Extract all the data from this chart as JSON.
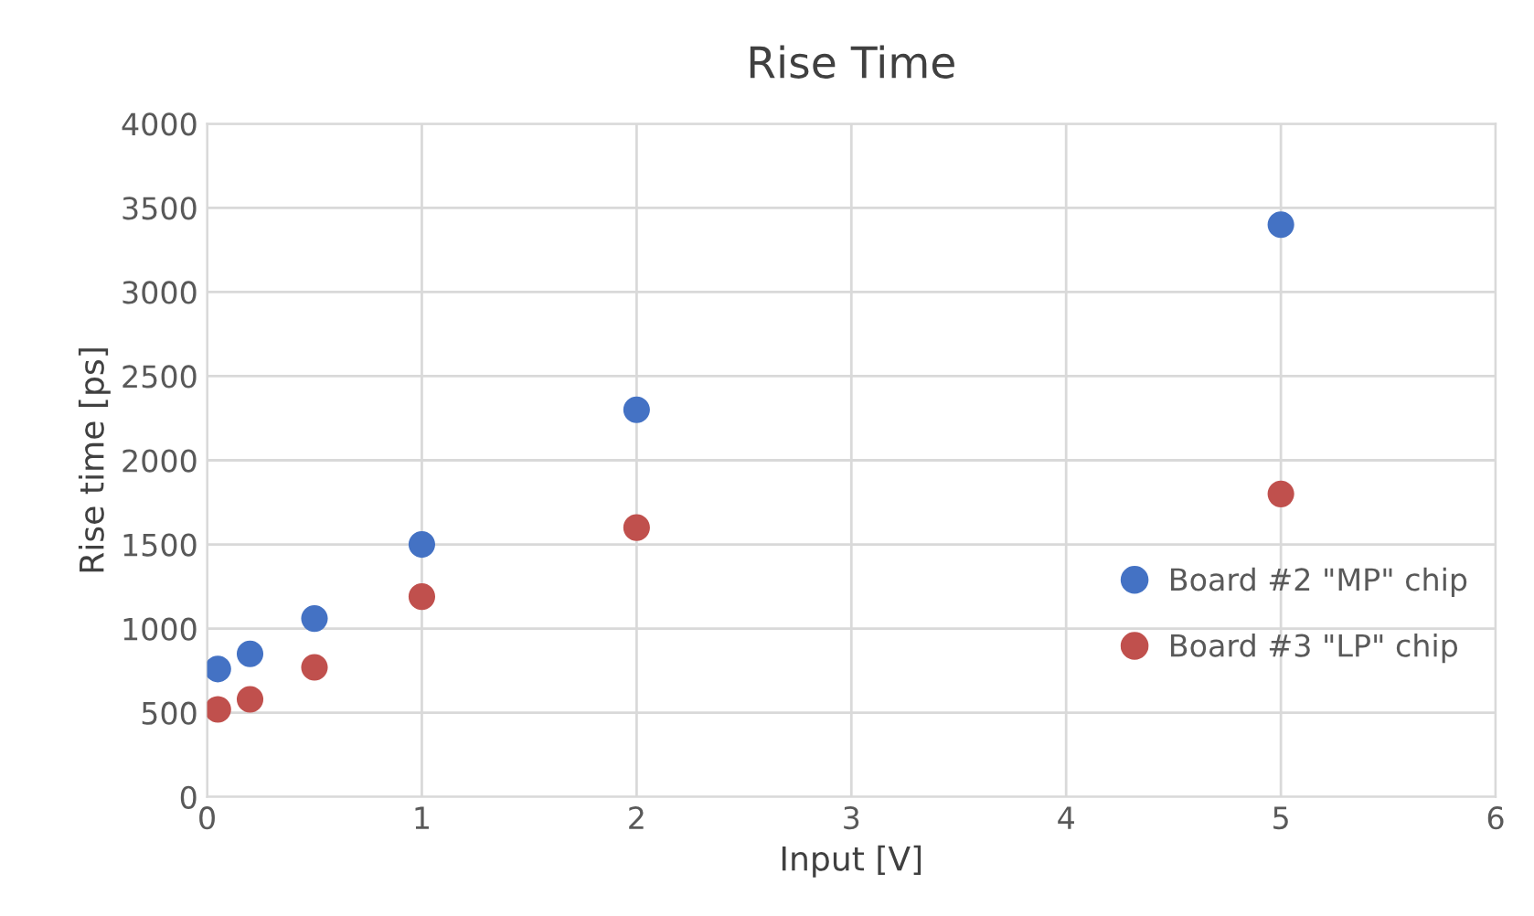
{
  "chart_data": {
    "type": "scatter",
    "title": "Rise Time",
    "xlabel": "Input [V]",
    "ylabel": "Rise time [ps]",
    "series": [
      {
        "name": "Board #2 \"MP\" chip",
        "color": "#4472c4",
        "x": [
          0.05,
          0.2,
          0.5,
          1,
          2,
          5
        ],
        "values": [
          760,
          850,
          1060,
          1500,
          2300,
          3400
        ]
      },
      {
        "name": "Board #3 \"LP\" chip",
        "color": "#c0504d",
        "x": [
          0.05,
          0.2,
          0.5,
          1,
          2,
          5
        ],
        "values": [
          520,
          580,
          770,
          1190,
          1600,
          1800
        ]
      }
    ],
    "xlim": [
      0,
      6
    ],
    "xticks": [
      0,
      1,
      2,
      3,
      4,
      5,
      6
    ],
    "ylim": [
      0,
      4000
    ],
    "yticks": [
      0,
      500,
      1000,
      1500,
      2000,
      2500,
      3000,
      3500,
      4000
    ],
    "grid": true,
    "legend": "right",
    "marker": "circle"
  }
}
